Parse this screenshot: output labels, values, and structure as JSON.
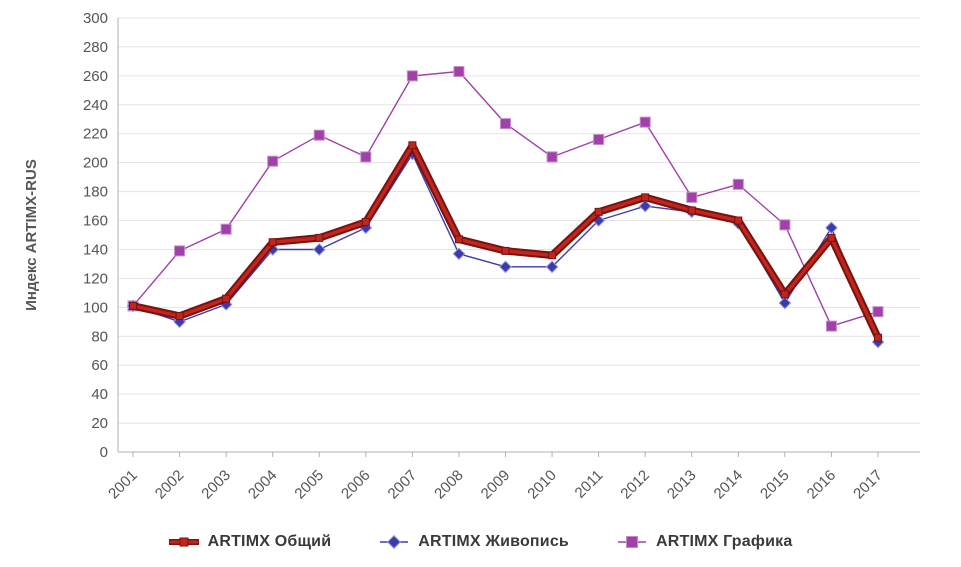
{
  "chart_data": {
    "type": "line",
    "title": "",
    "ylabel": "Индекс ARTIMX-RUS",
    "xlabel": "",
    "ylim": [
      0,
      300
    ],
    "ytick_step": 20,
    "grid": true,
    "legend_position": "bottom",
    "x": [
      "2001",
      "2002",
      "2003",
      "2004",
      "2005",
      "2006",
      "2007",
      "2008",
      "2009",
      "2010",
      "2011",
      "2012",
      "2013",
      "2014",
      "2015",
      "2016",
      "2017"
    ],
    "series": [
      {
        "name": "ARTIMX Общий",
        "color": "#c0261f",
        "edge_color": "#7a120e",
        "line_width": 3.4,
        "outline_width": 7.5,
        "marker": "square",
        "marker_size": 7,
        "values": [
          101,
          94,
          106,
          145,
          148,
          159,
          212,
          147,
          139,
          136,
          166,
          176,
          167,
          160,
          109,
          148,
          79
        ]
      },
      {
        "name": "ARTIMX Живопись",
        "color": "#3b3bb0",
        "edge_color": "#9a9ad8",
        "line_width": 1.4,
        "outline_width": 0,
        "marker": "diamond",
        "marker_size": 8,
        "values": [
          101,
          90,
          102,
          140,
          140,
          155,
          206,
          137,
          128,
          128,
          160,
          170,
          166,
          158,
          103,
          155,
          76
        ]
      },
      {
        "name": "ARTIMX Графика",
        "color": "#a råka040a8",
        "values_note": "",
        "values": [
          101,
          139,
          154,
          201,
          219,
          204,
          260,
          263,
          227,
          204,
          216,
          228,
          176,
          185,
          157,
          87,
          97
        ],
        "color_fix": "#a040a8",
        "edge_color": "#c48cc8",
        "line_width": 1.4,
        "outline_width": 0,
        "marker": "square",
        "marker_size": 10
      }
    ]
  },
  "colors": {
    "grid": "#e3e3e3",
    "axis": "#b0b0b0",
    "tick_text": "#555555",
    "legend_text": "#3a3a3a",
    "background": "#ffffff"
  }
}
